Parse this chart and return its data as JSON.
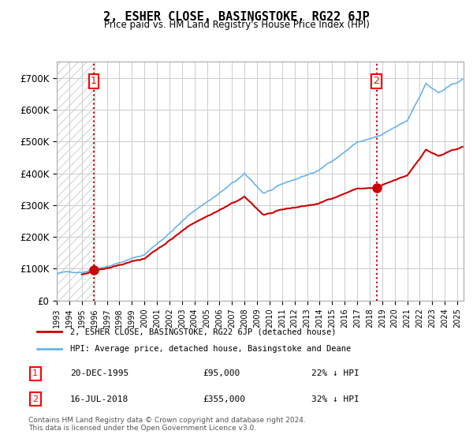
{
  "title": "2, ESHER CLOSE, BASINGSTOKE, RG22 6JP",
  "subtitle": "Price paid vs. HM Land Registry's House Price Index (HPI)",
  "hpi_label": "HPI: Average price, detached house, Basingstoke and Deane",
  "property_label": "2, ESHER CLOSE, BASINGSTOKE, RG22 6JP (detached house)",
  "transaction1_date": "20-DEC-1995",
  "transaction1_price": 95000,
  "transaction1_hpi": "22% ↓ HPI",
  "transaction2_date": "16-JUL-2018",
  "transaction2_price": 355000,
  "transaction2_hpi": "32% ↓ HPI",
  "footer": "Contains HM Land Registry data © Crown copyright and database right 2024.\nThis data is licensed under the Open Government Licence v3.0.",
  "hpi_color": "#6ab4e8",
  "property_color": "#cc0000",
  "marker_color": "#cc0000",
  "vline_color": "#cc0000",
  "hatch_color": "#d0d0d0",
  "grid_color": "#cccccc",
  "background_color": "#ffffff",
  "ylim": [
    0,
    750000
  ],
  "yticks": [
    0,
    100000,
    200000,
    300000,
    400000,
    500000,
    600000,
    700000
  ],
  "ytick_labels": [
    "£0",
    "£100K",
    "£200K",
    "£300K",
    "£400K",
    "£500K",
    "£600K",
    "£700K"
  ],
  "xlim_start": 1993.0,
  "xlim_end": 2025.5
}
